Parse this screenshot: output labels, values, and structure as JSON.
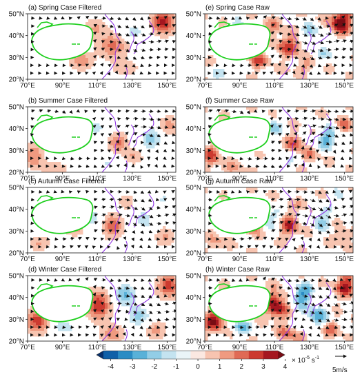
{
  "panels": [
    {
      "id": "a",
      "title": "(a) Spring Case Filtered",
      "season": "spring",
      "kind": "filtered",
      "col": 0,
      "row": 0
    },
    {
      "id": "b",
      "title": "(b) Summer Case Filtered",
      "season": "summer",
      "kind": "filtered",
      "col": 0,
      "row": 1
    },
    {
      "id": "c",
      "title": "(c) Autumn Case Filtered",
      "season": "autumn",
      "kind": "filtered",
      "col": 0,
      "row": 2
    },
    {
      "id": "d",
      "title": "(d) Winter Case Filtered",
      "season": "winter",
      "kind": "filtered",
      "col": 0,
      "row": 3
    },
    {
      "id": "e",
      "title": "(e) Spring Case Raw",
      "season": "spring",
      "kind": "raw",
      "col": 1,
      "row": 0
    },
    {
      "id": "f",
      "title": "(f) Summer Case Raw",
      "season": "summer",
      "kind": "raw",
      "col": 1,
      "row": 1
    },
    {
      "id": "g",
      "title": "(g) Autumn Case Raw",
      "season": "autumn",
      "kind": "raw",
      "col": 1,
      "row": 2
    },
    {
      "id": "h",
      "title": "(h) Winter Case Raw",
      "season": "winter",
      "kind": "raw",
      "col": 1,
      "row": 3
    }
  ],
  "map_extent": {
    "lon_min": 70,
    "lon_max": 155,
    "lat_min": 20,
    "lat_max": 50
  },
  "axes": {
    "lon_ticks": [
      {
        "value": 70,
        "label": "70°E"
      },
      {
        "value": 90,
        "label": "90°E"
      },
      {
        "value": 110,
        "label": "110°E"
      },
      {
        "value": 130,
        "label": "130°E"
      },
      {
        "value": 150,
        "label": "150°E"
      }
    ],
    "lat_ticks": [
      {
        "value": 50,
        "label": "50°N"
      },
      {
        "value": 40,
        "label": "40°N"
      },
      {
        "value": 30,
        "label": "30°N"
      },
      {
        "value": 20,
        "label": "20°N"
      }
    ]
  },
  "colorbar": {
    "ticks": [
      "-4",
      "-3",
      "-2",
      "-1",
      "0",
      "1",
      "2",
      "3",
      "4"
    ],
    "unit_prefix": "× 10",
    "unit_exp": "-5",
    "unit_suffix": "s",
    "unit_suffix_exp": "-1",
    "colors": [
      "#08306b",
      "#1060a8",
      "#2b8cc4",
      "#59b1d8",
      "#92cde6",
      "#c4e3f0",
      "#eaf4f8",
      "#fbe8e1",
      "#f7c4b0",
      "#ef9a80",
      "#e06a55",
      "#cc3a30",
      "#a51720",
      "#780c14"
    ]
  },
  "wind_reference": {
    "label": "5m/s",
    "speed": 5
  },
  "colors": {
    "plateau": "#1fcf1f",
    "coast": "#8a2be2",
    "vector": "#111111"
  },
  "vorticity_centers": {
    "spring": [
      [
        147,
        47,
        3.6,
        6,
        5
      ],
      [
        118,
        36,
        2.0,
        8,
        5
      ],
      [
        100,
        29,
        1.8,
        6,
        3.5
      ],
      [
        88,
        43,
        -1.8,
        6,
        4
      ],
      [
        130,
        42,
        -1.4,
        7,
        4
      ],
      [
        108,
        44,
        1.2,
        6,
        4
      ],
      [
        140,
        33,
        -1.0,
        7,
        4
      ],
      [
        80,
        24,
        -1.0,
        8,
        3
      ],
      [
        125,
        26,
        1.0,
        7,
        3
      ]
    ],
    "summer": [
      [
        73,
        28,
        1.8,
        5,
        5
      ],
      [
        121,
        34,
        2.0,
        5,
        4
      ],
      [
        108,
        41,
        -1.6,
        5,
        4
      ],
      [
        98,
        35,
        -1.5,
        5,
        4
      ],
      [
        140,
        36,
        -2.2,
        6,
        5
      ],
      [
        150,
        42,
        1.4,
        5,
        4
      ],
      [
        130,
        28,
        1.2,
        5,
        3
      ],
      [
        85,
        22,
        1.0,
        7,
        3
      ],
      [
        115,
        25,
        -1.2,
        5,
        3
      ]
    ],
    "autumn": [
      [
        86,
        41,
        -1.8,
        6,
        4
      ],
      [
        118,
        33,
        2.4,
        5,
        5
      ],
      [
        106,
        37,
        -1.6,
        5,
        4
      ],
      [
        96,
        32,
        1.6,
        5,
        3
      ],
      [
        136,
        36,
        -1.6,
        5,
        5
      ],
      [
        147,
        45,
        -1.2,
        5,
        4
      ],
      [
        148,
        28,
        1.2,
        5,
        4
      ],
      [
        126,
        44,
        1.0,
        4,
        3
      ],
      [
        76,
        25,
        1.2,
        5,
        3
      ]
    ],
    "winter": [
      [
        75,
        30,
        3.0,
        6,
        5
      ],
      [
        110,
        37,
        3.2,
        6,
        6
      ],
      [
        150,
        46,
        2.8,
        6,
        5
      ],
      [
        125,
        42,
        -2.6,
        6,
        5
      ],
      [
        133,
        32,
        -2.0,
        7,
        5
      ],
      [
        97,
        42,
        1.4,
        6,
        3
      ],
      [
        90,
        27,
        -1.8,
        7,
        3
      ],
      [
        118,
        24,
        1.6,
        6,
        4
      ],
      [
        142,
        26,
        1.4,
        6,
        4
      ]
    ]
  },
  "wind_centers": {
    "spring": [
      [
        95,
        40,
        1.0
      ],
      [
        120,
        28,
        -1.0
      ],
      [
        140,
        45,
        1.2
      ],
      [
        110,
        44,
        -0.6
      ]
    ],
    "summer": [
      [
        100,
        38,
        1.2
      ],
      [
        135,
        33,
        -1.4
      ],
      [
        118,
        25,
        0.8
      ],
      [
        85,
        45,
        -0.8
      ]
    ],
    "autumn": [
      [
        92,
        38,
        1.0
      ],
      [
        125,
        32,
        -1.2
      ],
      [
        145,
        42,
        1.0
      ],
      [
        108,
        25,
        -0.6
      ]
    ],
    "winter": [
      [
        98,
        40,
        1.2
      ],
      [
        125,
        30,
        -1.0
      ],
      [
        150,
        40,
        1.2
      ],
      [
        110,
        45,
        -0.8
      ]
    ]
  }
}
